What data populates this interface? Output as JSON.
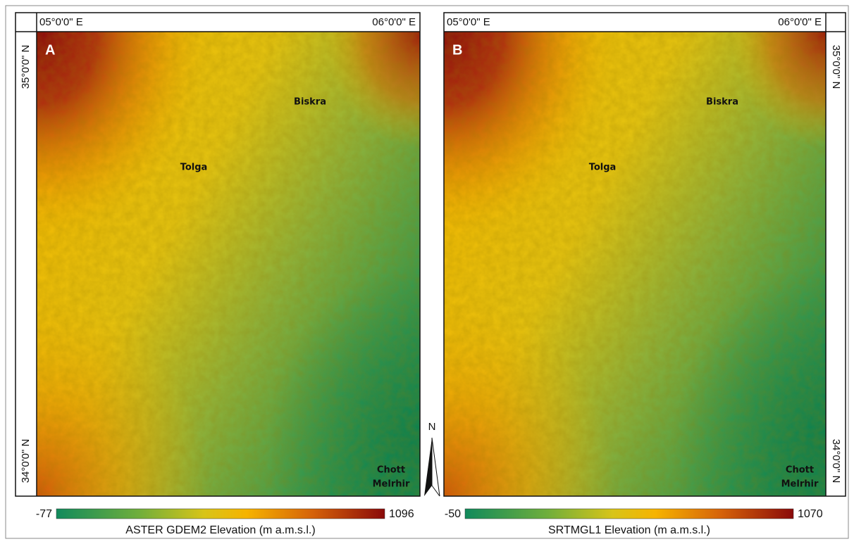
{
  "panels": [
    {
      "letter": "A",
      "lon_labels": [
        "05°0'0\" E",
        "06°0'0\" E"
      ],
      "lat_labels": [
        "35°0'0\" N",
        "34°0'0\" N"
      ],
      "places": [
        [
          "Biskra"
        ],
        [
          "Tolga"
        ],
        [
          "Chott",
          "Melrhir"
        ]
      ],
      "legend": {
        "min": -77,
        "max": 1096,
        "title": "ASTER GDEM2 Elevation (m a.m.s.l.)"
      }
    },
    {
      "letter": "B",
      "lon_labels": [
        "05°0'0\" E",
        "06°0'0\" E"
      ],
      "lat_labels": [
        "35°0'0\" N",
        "34°0'0\" N"
      ],
      "places": [
        [
          "Biskra"
        ],
        [
          "Tolga"
        ],
        [
          "Chott",
          "Melrhir"
        ]
      ],
      "legend": {
        "min": -50,
        "max": 1070,
        "title": "SRTMGL1 Elevation (m a.m.s.l.)"
      }
    }
  ],
  "north_arrow": "N"
}
